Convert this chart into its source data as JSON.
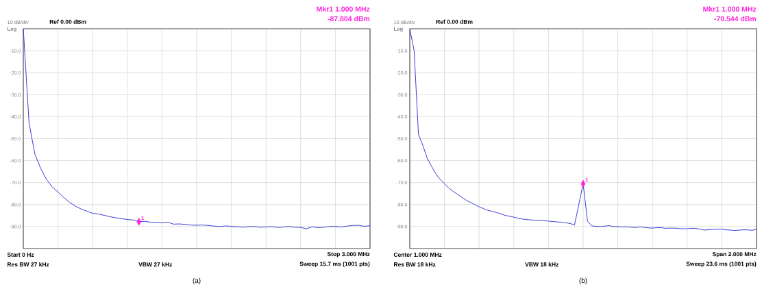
{
  "chart_data": [
    {
      "type": "line",
      "title": "(a)",
      "annotations": [
        "10 dB/div",
        "Log",
        "Ref 0.00 dBm",
        "Mkr1 1.000 MHz",
        "-87.804 dBm",
        "Start 0 Hz",
        "Res BW 27 kHz",
        "VBW 27 kHz",
        "Stop 3.000 MHz",
        "Sweep 15.7 ms (1001 pts)",
        "1"
      ],
      "categories": [
        null,
        null,
        null,
        null,
        null,
        null,
        null,
        null,
        null,
        null,
        null,
        null,
        null,
        null,
        null,
        null,
        null,
        null,
        null,
        null,
        null,
        null,
        null,
        null,
        null,
        null,
        null,
        null,
        null,
        null,
        null,
        null,
        null,
        null,
        null,
        null,
        null,
        null,
        null,
        null,
        null,
        null,
        null,
        null,
        null,
        null,
        null,
        null,
        null,
        null,
        null,
        null,
        null,
        null,
        null,
        null,
        null,
        null,
        null,
        null,
        null
      ],
      "series": [
        {
          "color": "#3b3bd4",
          "values": [
            0,
            -43,
            -57,
            -63.5,
            -68.5,
            -72,
            -74.3,
            -76.8,
            -79,
            -80.7,
            -82,
            -83,
            -84,
            -84.3,
            -84.9,
            -85.5,
            -86,
            -86.4,
            -86.8,
            -87.0,
            -87.8,
            -87.6,
            -88.0,
            -88.1,
            -88.3,
            -88.0,
            -88.9,
            -88.8,
            -89.0,
            -89.3,
            -89.4,
            -89.3,
            -89.5,
            -89.8,
            -90.0,
            -89.7,
            -89.9,
            -90.1,
            -90.3,
            -90.0,
            -90.0,
            -90.3,
            -90.2,
            -90.0,
            -90.4,
            -90.2,
            -90.0,
            -90.3,
            -90.4,
            -91.0,
            -90.1,
            -90.5,
            -90.3,
            -90.0,
            -89.9,
            -90.2,
            -89.8,
            -89.5,
            -89.4,
            -89.9,
            -89.6
          ]
        },
        {
          "type": "scatter",
          "color": "#ff22dd",
          "marker": "diamond",
          "values": [
            null,
            null,
            null,
            null,
            null,
            null,
            null,
            null,
            null,
            null,
            null,
            null,
            null,
            null,
            null,
            null,
            null,
            null,
            null,
            null,
            -87.804,
            null,
            null,
            null,
            null,
            null,
            null,
            null,
            null,
            null,
            null,
            null,
            null,
            null,
            null,
            null,
            null,
            null,
            null,
            null,
            null,
            null,
            null,
            null,
            null,
            null,
            null,
            null,
            null,
            null,
            null,
            null,
            null,
            null,
            null,
            null,
            null,
            null,
            null,
            null,
            null
          ]
        }
      ],
      "ylim": [
        -100,
        0
      ],
      "yticks": [
        {
          "value": 0,
          "label": null
        },
        {
          "value": -10,
          "label": "-10.0"
        },
        {
          "value": -20,
          "label": "-20.0"
        },
        {
          "value": -30,
          "label": "-30.0"
        },
        {
          "value": -40,
          "label": "-40.0"
        },
        {
          "value": -50,
          "label": "-50.0"
        },
        {
          "value": -60,
          "label": "-60.0"
        },
        {
          "value": -70,
          "label": "-70.0"
        },
        {
          "value": -80,
          "label": "-80.0"
        },
        {
          "value": -90,
          "label": "-90.0"
        },
        {
          "value": -100,
          "label": null
        }
      ],
      "grid": true,
      "tick_labels": "y"
    },
    {
      "type": "line",
      "title": "(b)",
      "annotations": [
        "10 dB/div",
        "Log",
        "Ref 0.00 dBm",
        "Mkr1 1.000 MHz",
        "-70.544 dBm",
        "Center 1.000 MHz",
        "Res BW 18 kHz",
        "VBW 18 kHz",
        "Span 2.000 MHz",
        "Sweep 23.6 ms (1001 pts)",
        "1"
      ],
      "categories": [
        null,
        null,
        null,
        null,
        null,
        null,
        null,
        null,
        null,
        null,
        null,
        null,
        null,
        null,
        null,
        null,
        null,
        null,
        null,
        null,
        null,
        null,
        null,
        null,
        null,
        null,
        null,
        null,
        null,
        null,
        null,
        null,
        null,
        null,
        null,
        null,
        null,
        null,
        null,
        null,
        null,
        null,
        null,
        null,
        null,
        null,
        null,
        null,
        null,
        null,
        null,
        null,
        null,
        null,
        null,
        null,
        null,
        null,
        null,
        null,
        null,
        null,
        null,
        null,
        null,
        null,
        null,
        null,
        null,
        null,
        null,
        null,
        null,
        null,
        null,
        null,
        null,
        null,
        null,
        null,
        null
      ],
      "series": [
        {
          "color": "#3b3bd4",
          "values": [
            0,
            -10,
            -48,
            -53,
            -58.8,
            -62.5,
            -66,
            -68.5,
            -70.5,
            -72.5,
            -74,
            -75.3,
            -76.7,
            -78,
            -79,
            -80,
            -81,
            -81.8,
            -82.6,
            -83.1,
            -83.6,
            -84.2,
            -84.9,
            -85.3,
            -85.7,
            -86.2,
            -86.6,
            -86.8,
            -87,
            -87.2,
            -87.3,
            -87.4,
            -87.5,
            -87.7,
            -87.9,
            -88.0,
            -88.3,
            -88.6,
            -89.3,
            -80,
            -70.5,
            -87.5,
            -89.7,
            -89.9,
            -90,
            -89.8,
            -89.6,
            -90,
            -90,
            -90.2,
            -90.1,
            -90.3,
            -90.4,
            -90.2,
            -90.3,
            -90.6,
            -90.7,
            -90.5,
            -90.5,
            -90.8,
            -90.7,
            -90.7,
            -90.9,
            -91,
            -91,
            -90.8,
            -90.8,
            -91.2,
            -91.6,
            -91.4,
            -91.3,
            -91.2,
            -91.2,
            -91.5,
            -91.6,
            -91.8,
            -91.6,
            -91.5,
            -91.5,
            -91.7,
            -91.3
          ]
        },
        {
          "type": "scatter",
          "color": "#ff22dd",
          "marker": "diamond",
          "values": [
            null,
            null,
            null,
            null,
            null,
            null,
            null,
            null,
            null,
            null,
            null,
            null,
            null,
            null,
            null,
            null,
            null,
            null,
            null,
            null,
            null,
            null,
            null,
            null,
            null,
            null,
            null,
            null,
            null,
            null,
            null,
            null,
            null,
            null,
            null,
            null,
            null,
            null,
            null,
            null,
            -70.544,
            null,
            null,
            null,
            null,
            null,
            null,
            null,
            null,
            null,
            null,
            null,
            null,
            null,
            null,
            null,
            null,
            null,
            null,
            null,
            null,
            null,
            null,
            null,
            null,
            null,
            null,
            null,
            null,
            null,
            null,
            null,
            null,
            null,
            null,
            null,
            null,
            null,
            null,
            null,
            null
          ]
        }
      ],
      "ylim": [
        -100,
        0
      ],
      "yticks": [
        {
          "value": 0,
          "label": null
        },
        {
          "value": -10,
          "label": "-10.0"
        },
        {
          "value": -20,
          "label": "-20.0"
        },
        {
          "value": -30,
          "label": "-30.0"
        },
        {
          "value": -40,
          "label": "-40.0"
        },
        {
          "value": -50,
          "label": "-50.0"
        },
        {
          "value": -60,
          "label": "-60.0"
        },
        {
          "value": -70,
          "label": "-70.0"
        },
        {
          "value": -80,
          "label": "-80.0"
        },
        {
          "value": -90,
          "label": "-90.0"
        },
        {
          "value": -100,
          "label": null
        }
      ],
      "grid": true,
      "tick_labels": "y"
    }
  ]
}
